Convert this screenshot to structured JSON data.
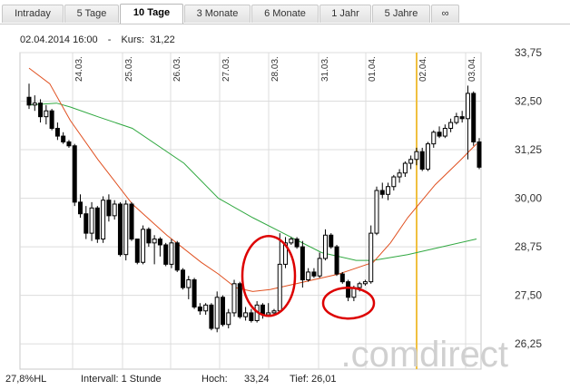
{
  "tabs": [
    {
      "label": "Intraday",
      "active": false
    },
    {
      "label": "5 Tage",
      "active": false
    },
    {
      "label": "10 Tage",
      "active": true
    },
    {
      "label": "3 Monate",
      "active": false
    },
    {
      "label": "6 Monate",
      "active": false
    },
    {
      "label": "1 Jahr",
      "active": false
    },
    {
      "label": "5 Jahre",
      "active": false
    },
    {
      "label": "∞",
      "active": false
    }
  ],
  "info": {
    "datetime": "02.04.2014 16:00",
    "kurs_label": "Kurs:",
    "kurs_value": "31,22"
  },
  "footer": {
    "hl": "27,8%HL",
    "intervall": "Intervall: 1 Stunde",
    "hoch_label": "Hoch:",
    "hoch_value": "33,24",
    "tief_label": "Tief:",
    "tief_value": "26,01"
  },
  "watermark": ".comdirect",
  "colors": {
    "up_candle": "#ffffff",
    "down_candle": "#000000",
    "ma_short": "#e05020",
    "ma_long": "#30a840",
    "highlight": "#f0c040",
    "marker": "#dd0000"
  },
  "chart_data": {
    "type": "candlestick",
    "date_labels": [
      "24.03.",
      "25.03.",
      "26.03.",
      "27.03.",
      "28.03.",
      "31.03.",
      "01.04.",
      "02.04.",
      "03.04."
    ],
    "highlighted_date": "02.04.",
    "y_ticks": [
      "33,75",
      "32,50",
      "31,25",
      "30,00",
      "28,75",
      "27,50",
      "26,25"
    ],
    "ylim": [
      25.6,
      33.75
    ],
    "candles": [
      [
        32.6,
        32.95,
        32.3,
        32.4
      ],
      [
        32.4,
        32.65,
        32.25,
        32.45
      ],
      [
        32.45,
        32.55,
        31.95,
        32.1
      ],
      [
        32.1,
        32.4,
        31.9,
        32.25
      ],
      [
        32.25,
        32.3,
        31.75,
        31.8
      ],
      [
        31.8,
        31.95,
        31.5,
        31.6
      ],
      [
        31.6,
        31.7,
        31.4,
        31.45
      ],
      [
        31.45,
        31.5,
        31.3,
        31.35
      ],
      [
        31.35,
        31.4,
        29.8,
        29.9
      ],
      [
        29.9,
        30.1,
        29.5,
        29.6
      ],
      [
        29.6,
        29.8,
        28.95,
        29.1
      ],
      [
        29.1,
        29.9,
        28.9,
        29.75
      ],
      [
        29.75,
        29.8,
        28.85,
        28.95
      ],
      [
        28.95,
        30.05,
        28.85,
        29.95
      ],
      [
        29.95,
        30.1,
        29.4,
        29.55
      ],
      [
        29.55,
        29.95,
        29.45,
        29.85
      ],
      [
        29.85,
        29.9,
        28.5,
        28.55
      ],
      [
        28.55,
        29.95,
        28.4,
        29.85
      ],
      [
        29.85,
        29.9,
        28.9,
        28.95
      ],
      [
        28.95,
        28.95,
        28.3,
        28.35
      ],
      [
        28.35,
        29.3,
        28.3,
        29.2
      ],
      [
        29.2,
        29.25,
        28.75,
        28.85
      ],
      [
        28.85,
        29.05,
        28.3,
        28.95
      ],
      [
        28.95,
        29.0,
        28.5,
        28.8
      ],
      [
        28.8,
        28.85,
        28.25,
        28.3
      ],
      [
        28.3,
        28.95,
        28.2,
        28.85
      ],
      [
        28.85,
        28.9,
        28.1,
        28.15
      ],
      [
        28.15,
        28.2,
        27.65,
        27.7
      ],
      [
        27.7,
        28.0,
        27.4,
        27.9
      ],
      [
        27.9,
        27.95,
        27.15,
        27.2
      ],
      [
        27.2,
        27.3,
        27.0,
        27.1
      ],
      [
        27.1,
        27.3,
        27.0,
        27.25
      ],
      [
        27.25,
        27.3,
        26.6,
        26.65
      ],
      [
        26.65,
        27.6,
        26.55,
        27.45
      ],
      [
        27.45,
        27.5,
        26.7,
        26.75
      ],
      [
        26.75,
        27.15,
        26.65,
        27.05
      ],
      [
        27.05,
        27.9,
        26.95,
        27.8
      ],
      [
        27.8,
        27.85,
        26.9,
        26.95
      ],
      [
        26.95,
        27.2,
        26.85,
        27.05
      ],
      [
        27.05,
        27.15,
        26.8,
        26.85
      ],
      [
        26.85,
        27.35,
        26.8,
        27.25
      ],
      [
        27.25,
        27.3,
        26.9,
        27.0
      ],
      [
        27.0,
        27.3,
        26.95,
        27.05
      ],
      [
        27.05,
        27.15,
        27.0,
        27.1
      ],
      [
        27.1,
        29.1,
        27.05,
        28.3
      ],
      [
        28.3,
        29.0,
        28.2,
        28.85
      ],
      [
        28.85,
        29.0,
        28.8,
        28.95
      ],
      [
        28.95,
        29.0,
        28.7,
        28.75
      ],
      [
        28.75,
        28.9,
        27.7,
        27.9
      ],
      [
        27.9,
        28.2,
        27.85,
        28.1
      ],
      [
        28.1,
        28.2,
        27.95,
        28.0
      ],
      [
        28.0,
        28.6,
        27.95,
        28.45
      ],
      [
        28.45,
        29.2,
        28.4,
        29.05
      ],
      [
        29.05,
        29.1,
        28.7,
        28.75
      ],
      [
        28.75,
        28.8,
        28.0,
        28.05
      ],
      [
        28.05,
        28.1,
        27.8,
        27.85
      ],
      [
        27.85,
        27.9,
        27.35,
        27.45
      ],
      [
        27.45,
        27.75,
        27.35,
        27.7
      ],
      [
        27.7,
        27.85,
        27.6,
        27.8
      ],
      [
        27.8,
        27.9,
        27.75,
        27.85
      ],
      [
        27.85,
        29.3,
        27.8,
        29.1
      ],
      [
        29.1,
        30.3,
        29.05,
        30.2
      ],
      [
        30.2,
        30.4,
        30.0,
        30.1
      ],
      [
        30.1,
        30.4,
        29.95,
        30.3
      ],
      [
        30.3,
        30.6,
        30.2,
        30.55
      ],
      [
        30.55,
        30.75,
        30.4,
        30.65
      ],
      [
        30.65,
        30.95,
        30.55,
        30.9
      ],
      [
        30.9,
        31.1,
        30.75,
        31.0
      ],
      [
        31.0,
        31.3,
        30.85,
        31.2
      ],
      [
        31.2,
        31.3,
        30.7,
        30.75
      ],
      [
        30.75,
        31.45,
        30.7,
        31.4
      ],
      [
        31.4,
        31.75,
        31.3,
        31.7
      ],
      [
        31.7,
        31.85,
        31.55,
        31.6
      ],
      [
        31.6,
        31.9,
        31.55,
        31.8
      ],
      [
        31.8,
        32.05,
        31.7,
        31.95
      ],
      [
        31.95,
        32.2,
        31.9,
        32.1
      ],
      [
        32.1,
        32.25,
        31.95,
        32.05
      ],
      [
        32.05,
        32.9,
        31.0,
        32.7
      ],
      [
        32.7,
        32.75,
        31.35,
        31.45
      ],
      [
        31.45,
        31.55,
        30.75,
        30.8
      ]
    ],
    "ma_short": [
      [
        0,
        33.35
      ],
      [
        6,
        32.95
      ],
      [
        12,
        32.0
      ],
      [
        20,
        31.0
      ],
      [
        30,
        29.85
      ],
      [
        40,
        29.05
      ],
      [
        50,
        28.35
      ],
      [
        55,
        28.05
      ],
      [
        60,
        27.7
      ],
      [
        65,
        27.6
      ],
      [
        70,
        27.65
      ],
      [
        80,
        27.85
      ],
      [
        90,
        28.05
      ],
      [
        100,
        28.35
      ],
      [
        105,
        28.85
      ],
      [
        110,
        29.5
      ],
      [
        118,
        30.35
      ],
      [
        125,
        30.95
      ],
      [
        130,
        31.4
      ]
    ],
    "ma_long": [
      [
        0,
        32.4
      ],
      [
        8,
        32.45
      ],
      [
        12,
        32.35
      ],
      [
        20,
        32.1
      ],
      [
        30,
        31.8
      ],
      [
        45,
        30.9
      ],
      [
        55,
        30.0
      ],
      [
        65,
        29.5
      ],
      [
        75,
        29.05
      ],
      [
        85,
        28.6
      ],
      [
        95,
        28.4
      ],
      [
        100,
        28.4
      ],
      [
        110,
        28.55
      ],
      [
        120,
        28.75
      ],
      [
        130,
        28.95
      ]
    ]
  }
}
